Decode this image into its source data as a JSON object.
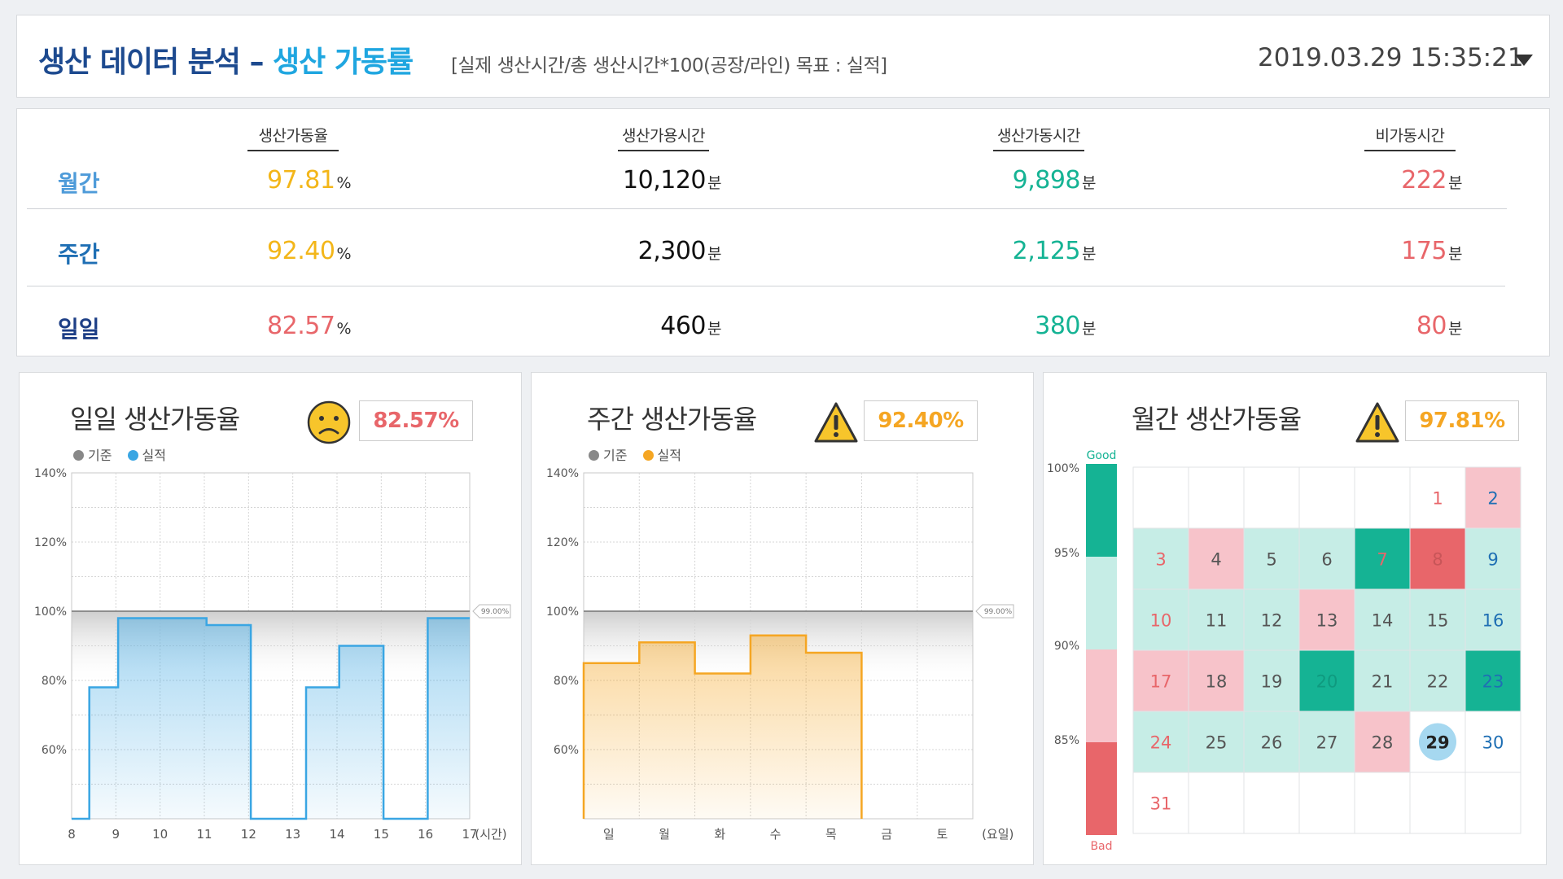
{
  "header": {
    "title_main": "생산 데이터 분석 – ",
    "title_sub": "생산 가동률",
    "description": "[실제 생산시간/총 생산시간*100(공장/라인) 목표 : 실적]",
    "datetime": "2019.03.29 15:35:21"
  },
  "summary": {
    "columns": [
      "생산가동율",
      "생산가용시간",
      "생산가동시간",
      "비가동시간"
    ],
    "rows": [
      {
        "label": "월간",
        "rate": "97.81",
        "rate_unit": "%",
        "available": "10,120",
        "operating": "9,898",
        "down": "222",
        "time_unit": "분"
      },
      {
        "label": "주간",
        "rate": "92.40",
        "rate_unit": "%",
        "available": "2,300",
        "operating": "2,125",
        "down": "175",
        "time_unit": "분"
      },
      {
        "label": "일일",
        "rate": "82.57",
        "rate_unit": "%",
        "available": "460",
        "operating": "380",
        "down": "80",
        "time_unit": "분"
      }
    ]
  },
  "colors": {
    "yellow": "#f3b619",
    "red": "#e8666a",
    "green": "#15b394",
    "blue_dark": "#1e3f86",
    "blue_mid": "#1f6fb4",
    "blue_light": "#4e9bd9",
    "daily_line": "#3aa6e3",
    "weekly_line": "#f5a623"
  },
  "daily": {
    "title": "일일 생산가동율",
    "status_value": "82.57%",
    "status_icon": "sad-face-icon",
    "legend_base": "기준",
    "legend_actual": "실적",
    "chart_data": {
      "type": "area",
      "x_labels": [
        "8",
        "9",
        "10",
        "11",
        "12",
        "13",
        "14",
        "15",
        "16",
        "17"
      ],
      "x_unit": "(시간)",
      "y_ticks": [
        "140%",
        "120%",
        "100%",
        "80%",
        "60%"
      ],
      "ylim": [
        40,
        140
      ],
      "baseline": 100,
      "baseline_label": "99.00%",
      "steps": [
        {
          "x0": 8.0,
          "x1": 8.4,
          "y": 40
        },
        {
          "x0": 8.4,
          "x1": 9.05,
          "y": 78
        },
        {
          "x0": 9.05,
          "x1": 11.05,
          "y": 98
        },
        {
          "x0": 11.05,
          "x1": 12.05,
          "y": 96
        },
        {
          "x0": 12.05,
          "x1": 13.3,
          "y": 40
        },
        {
          "x0": 13.3,
          "x1": 14.05,
          "y": 78
        },
        {
          "x0": 14.05,
          "x1": 15.05,
          "y": 90
        },
        {
          "x0": 15.05,
          "x1": 16.05,
          "y": 40
        },
        {
          "x0": 16.05,
          "x1": 17.0,
          "y": 98
        }
      ]
    }
  },
  "weekly": {
    "title": "주간 생산가동율",
    "status_value": "92.40%",
    "status_icon": "warning-icon",
    "legend_base": "기준",
    "legend_actual": "실적",
    "chart_data": {
      "type": "area",
      "x_labels": [
        "일",
        "월",
        "화",
        "수",
        "목",
        "금",
        "토"
      ],
      "x_unit": "(요일)",
      "y_ticks": [
        "140%",
        "120%",
        "100%",
        "80%",
        "60%"
      ],
      "ylim": [
        40,
        140
      ],
      "baseline": 100,
      "baseline_label": "99.00%",
      "values": [
        85,
        91,
        82,
        93,
        88
      ]
    }
  },
  "monthly": {
    "title": "월간 생산가동율",
    "status_value": "97.81%",
    "status_icon": "warning-icon",
    "scale_good": "Good",
    "scale_bad": "Bad",
    "scale_ticks": [
      "100%",
      "95%",
      "90%",
      "85%"
    ],
    "days": [
      {
        "d": "1",
        "bg": "#ffffff",
        "fg": "#e8666a"
      },
      {
        "d": "2",
        "bg": "#f7c3ca",
        "fg": "#1f6fb4"
      },
      {
        "d": "3",
        "bg": "#c6ede6",
        "fg": "#e8666a"
      },
      {
        "d": "4",
        "bg": "#f7c3ca",
        "fg": "#555555"
      },
      {
        "d": "5",
        "bg": "#c6ede6",
        "fg": "#555555"
      },
      {
        "d": "6",
        "bg": "#c6ede6",
        "fg": "#555555"
      },
      {
        "d": "7",
        "bg": "#15b394",
        "fg": "#e8666a"
      },
      {
        "d": "8",
        "bg": "#e8666a",
        "fg": "#c85558"
      },
      {
        "d": "9",
        "bg": "#c6ede6",
        "fg": "#1f6fb4"
      },
      {
        "d": "10",
        "bg": "#c6ede6",
        "fg": "#e8666a"
      },
      {
        "d": "11",
        "bg": "#c6ede6",
        "fg": "#555555"
      },
      {
        "d": "12",
        "bg": "#c6ede6",
        "fg": "#555555"
      },
      {
        "d": "13",
        "bg": "#f7c3ca",
        "fg": "#555555"
      },
      {
        "d": "14",
        "bg": "#c6ede6",
        "fg": "#555555"
      },
      {
        "d": "15",
        "bg": "#c6ede6",
        "fg": "#555555"
      },
      {
        "d": "16",
        "bg": "#c6ede6",
        "fg": "#1f6fb4"
      },
      {
        "d": "17",
        "bg": "#f7c3ca",
        "fg": "#e8666a"
      },
      {
        "d": "18",
        "bg": "#f7c3ca",
        "fg": "#555555"
      },
      {
        "d": "19",
        "bg": "#c6ede6",
        "fg": "#555555"
      },
      {
        "d": "20",
        "bg": "#15b394",
        "fg": "#0f9a7f"
      },
      {
        "d": "21",
        "bg": "#c6ede6",
        "fg": "#555555"
      },
      {
        "d": "22",
        "bg": "#c6ede6",
        "fg": "#555555"
      },
      {
        "d": "23",
        "bg": "#15b394",
        "fg": "#1f6fb4"
      },
      {
        "d": "24",
        "bg": "#c6ede6",
        "fg": "#e8666a"
      },
      {
        "d": "25",
        "bg": "#c6ede6",
        "fg": "#555555"
      },
      {
        "d": "26",
        "bg": "#c6ede6",
        "fg": "#555555"
      },
      {
        "d": "27",
        "bg": "#c6ede6",
        "fg": "#555555"
      },
      {
        "d": "28",
        "bg": "#f7c3ca",
        "fg": "#555555"
      },
      {
        "d": "29",
        "bg": "#ffffff",
        "fg": "#222222",
        "today": true
      },
      {
        "d": "30",
        "bg": "#ffffff",
        "fg": "#1f6fb4"
      },
      {
        "d": "31",
        "bg": "#ffffff",
        "fg": "#e8666a"
      }
    ],
    "first_weekday": 5,
    "today_color": "#a6d8f0"
  }
}
